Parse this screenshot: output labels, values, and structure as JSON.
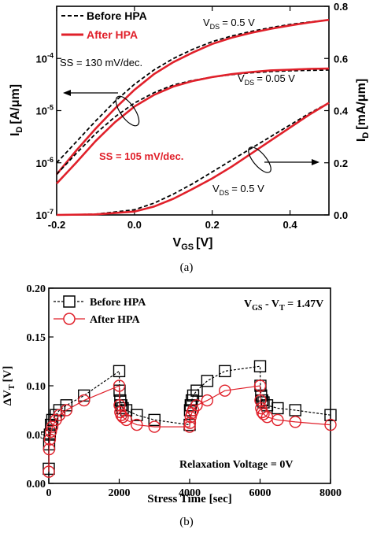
{
  "chart_data": [
    {
      "type": "line",
      "caption": "(a)",
      "xlabel": "V",
      "xlabel_sub": "GS",
      "xlabel_unit": "[V]",
      "ylabel_left": "I",
      "ylabel_left_sub": "D",
      "ylabel_left_unit": "[A/μm]",
      "ylabel_right": "I",
      "ylabel_right_sub": "D",
      "ylabel_right_unit": "[mA/μm]",
      "xlim": [
        -0.2,
        0.5
      ],
      "ylim_left": [
        1e-07,
        0.001
      ],
      "ylim_right": [
        0.0,
        0.8
      ],
      "x_ticks": [
        -0.2,
        0.0,
        0.2,
        0.4
      ],
      "x_tick_labels": [
        "-0.2",
        "0.0",
        "0.2",
        "0.4"
      ],
      "left_ticks": [
        1e-07,
        1e-06,
        1e-05,
        0.0001
      ],
      "left_tick_bases": [
        "10",
        "10",
        "10",
        "10"
      ],
      "left_tick_exps": [
        "-7",
        "-6",
        "-5",
        "-4"
      ],
      "right_ticks": [
        0.0,
        0.2,
        0.4,
        0.6,
        0.8
      ],
      "right_tick_labels": [
        "0.0",
        "0.2",
        "0.4",
        "0.6",
        "0.8"
      ],
      "legend": [
        {
          "label": "Before HPA",
          "style": "dashed",
          "color": "#000000"
        },
        {
          "label": "After HPA",
          "style": "solid",
          "color": "#e0202a"
        }
      ],
      "annotations": {
        "vds_high_top": "V",
        "vds_high_top_sub": "DS",
        "vds_high_top_val": "= 0.5 V",
        "vds_low": "V",
        "vds_low_sub": "DS",
        "vds_low_val": "= 0.05 V",
        "vds_high_bottom": "V",
        "vds_high_bottom_sub": "DS",
        "vds_high_bottom_val": "= 0.5 V",
        "ss_before": "SS = 130 mV/dec.",
        "ss_after": "SS = 105 mV/dec."
      },
      "series": [
        {
          "name": "Before HPA",
          "axis": "left",
          "note": "VDS=0.5V log",
          "x": [
            -0.2,
            -0.15,
            -0.1,
            -0.05,
            0.0,
            0.05,
            0.1,
            0.15,
            0.2,
            0.25,
            0.3,
            0.35,
            0.4,
            0.45,
            0.5
          ],
          "y": [
            1e-06,
            2.5e-06,
            6.3e-06,
            1.5e-05,
            3.2e-05,
            6e-05,
            0.0001,
            0.00015,
            0.00021,
            0.00027,
            0.00033,
            0.00039,
            0.00045,
            0.0005,
            0.00055
          ]
        },
        {
          "name": "After HPA",
          "axis": "left",
          "note": "VDS=0.5V log",
          "x": [
            -0.2,
            -0.15,
            -0.1,
            -0.05,
            0.0,
            0.05,
            0.1,
            0.15,
            0.2,
            0.25,
            0.3,
            0.35,
            0.4,
            0.45,
            0.5
          ],
          "y": [
            6e-07,
            1.7e-06,
            4.5e-06,
            1.1e-05,
            2.5e-05,
            5e-05,
            8.5e-05,
            0.00013,
            0.00019,
            0.00025,
            0.00031,
            0.00037,
            0.00043,
            0.00049,
            0.00055
          ]
        },
        {
          "name": "Before HPA",
          "axis": "left",
          "note": "VDS=0.05V log",
          "x": [
            -0.2,
            -0.15,
            -0.1,
            -0.05,
            0.0,
            0.05,
            0.1,
            0.15,
            0.2,
            0.25,
            0.3,
            0.35,
            0.4,
            0.45,
            0.5
          ],
          "y": [
            6e-07,
            1.5e-06,
            3.6e-06,
            7.6e-06,
            1.4e-05,
            2.2e-05,
            3.1e-05,
            3.8e-05,
            4.4e-05,
            4.9e-05,
            5.3e-05,
            5.6e-05,
            5.8e-05,
            5.9e-05,
            6e-05
          ]
        },
        {
          "name": "After HPA",
          "axis": "left",
          "note": "VDS=0.05V log",
          "x": [
            -0.2,
            -0.15,
            -0.1,
            -0.05,
            0.0,
            0.05,
            0.1,
            0.15,
            0.2,
            0.25,
            0.3,
            0.35,
            0.4,
            0.45,
            0.5
          ],
          "y": [
            4e-07,
            1e-06,
            2.6e-06,
            6e-06,
            1.2e-05,
            2e-05,
            2.9e-05,
            3.7e-05,
            4.4e-05,
            5e-05,
            5.5e-05,
            5.9e-05,
            6.1e-05,
            6.3e-05,
            6.4e-05
          ]
        },
        {
          "name": "Before HPA",
          "axis": "right",
          "note": "VDS=0.5V linear",
          "x": [
            -0.2,
            -0.1,
            0.0,
            0.05,
            0.1,
            0.15,
            0.2,
            0.25,
            0.3,
            0.35,
            0.4,
            0.45,
            0.5
          ],
          "y": [
            0.0,
            0.003,
            0.02,
            0.045,
            0.08,
            0.12,
            0.165,
            0.21,
            0.255,
            0.3,
            0.345,
            0.39,
            0.43
          ]
        },
        {
          "name": "After HPA",
          "axis": "right",
          "note": "VDS=0.5V linear",
          "x": [
            -0.2,
            -0.1,
            0.0,
            0.05,
            0.1,
            0.15,
            0.2,
            0.25,
            0.3,
            0.35,
            0.4,
            0.45,
            0.5
          ],
          "y": [
            0.0,
            0.002,
            0.013,
            0.032,
            0.062,
            0.1,
            0.14,
            0.185,
            0.235,
            0.285,
            0.335,
            0.385,
            0.43
          ]
        }
      ]
    },
    {
      "type": "line",
      "caption": "(b)",
      "xlabel": "Stress Time [sec]",
      "ylabel": "ΔV",
      "ylabel_sub": "T",
      "ylabel_unit": "[V]",
      "xlim": [
        0,
        8000
      ],
      "ylim": [
        0.0,
        0.2
      ],
      "x_ticks": [
        0,
        2000,
        4000,
        6000,
        8000
      ],
      "x_tick_labels": [
        "0",
        "2000",
        "4000",
        "6000",
        "8000"
      ],
      "y_ticks": [
        0.0,
        0.05,
        0.1,
        0.15,
        0.2
      ],
      "y_tick_labels": [
        "0.00",
        "0.05",
        "0.10",
        "0.15",
        "0.20"
      ],
      "condition": "V",
      "condition_sub1": "GS",
      "condition_mid": " - V",
      "condition_sub2": "T",
      "condition_val": " = 1.47V",
      "relaxation": "Relaxation Voltage = 0V",
      "legend": [
        {
          "label": "Before HPA",
          "marker": "square",
          "color": "#000000"
        },
        {
          "label": "After HPA",
          "marker": "circle",
          "color": "#e0202a"
        }
      ],
      "series": [
        {
          "name": "Before HPA",
          "x": [
            0,
            10,
            30,
            60,
            100,
            200,
            300,
            500,
            1000,
            2000,
            2010,
            2030,
            2060,
            2100,
            2200,
            2500,
            3000,
            4000,
            4010,
            4030,
            4060,
            4100,
            4200,
            4500,
            5000,
            6000,
            6010,
            6030,
            6060,
            6100,
            6200,
            6500,
            7000,
            8000
          ],
          "y": [
            0.015,
            0.04,
            0.05,
            0.06,
            0.065,
            0.07,
            0.075,
            0.08,
            0.09,
            0.115,
            0.095,
            0.085,
            0.08,
            0.077,
            0.075,
            0.07,
            0.065,
            0.06,
            0.075,
            0.08,
            0.085,
            0.09,
            0.095,
            0.105,
            0.115,
            0.12,
            0.1,
            0.09,
            0.085,
            0.083,
            0.08,
            0.077,
            0.075,
            0.07
          ]
        },
        {
          "name": "After HPA",
          "x": [
            0,
            10,
            30,
            60,
            100,
            200,
            300,
            500,
            1000,
            2000,
            2010,
            2030,
            2060,
            2100,
            2200,
            2500,
            3000,
            4000,
            4010,
            4030,
            4060,
            4100,
            4200,
            4500,
            5000,
            6000,
            6010,
            6030,
            6060,
            6100,
            6200,
            6500,
            7000,
            8000
          ],
          "y": [
            0.012,
            0.035,
            0.045,
            0.053,
            0.058,
            0.065,
            0.07,
            0.075,
            0.085,
            0.1,
            0.08,
            0.073,
            0.07,
            0.068,
            0.065,
            0.06,
            0.058,
            0.058,
            0.062,
            0.068,
            0.072,
            0.075,
            0.08,
            0.085,
            0.095,
            0.1,
            0.085,
            0.077,
            0.073,
            0.071,
            0.068,
            0.065,
            0.063,
            0.06
          ]
        }
      ]
    }
  ],
  "colors": {
    "after": "#e0202a",
    "before": "#000000"
  }
}
